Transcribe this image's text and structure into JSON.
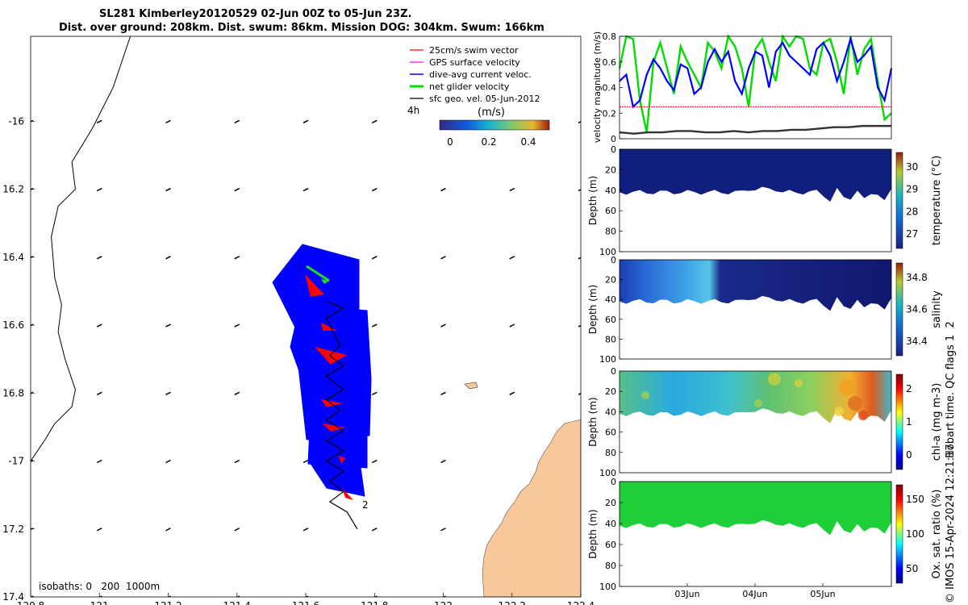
{
  "title": {
    "line1": "SL281 Kimberley20120529 02-Jun 00Z to 05-Jun 23Z.",
    "line2": "Dist. over ground: 208km. Dist. swum: 86km. Mission DOG: 304km. Swum: 166km"
  },
  "colors": {
    "swim_vector": "#ff0000",
    "gps_surface": "#ff00ff",
    "dive_avg": "#0000ff",
    "net_velocity": "#00dd00",
    "sfc_geo": "#000000",
    "land": "#f9c89a",
    "track_fill": "#0000ff",
    "track_line": "#000000"
  },
  "chart_data": [
    {
      "type": "map",
      "xlim": [
        120.8,
        122.4
      ],
      "ylim": [
        -17.4,
        -15.75
      ],
      "x_ticks": [
        120.8,
        121,
        121.2,
        121.4,
        121.6,
        121.8,
        122,
        122.2,
        122.4
      ],
      "x_tick_labels": [
        "120.8",
        "121",
        "121.2",
        "121.4",
        "121.6",
        "121.8",
        "122",
        "122.2",
        "122.4"
      ],
      "y_ticks": [
        -16,
        -16.2,
        -16.4,
        -16.6,
        -16.8,
        -17,
        -17.2,
        -17.4
      ],
      "y_tick_labels": [
        "-16",
        "16.2",
        "16.4",
        "16.6",
        "16.8",
        "-17",
        "17.2",
        "17.4"
      ],
      "legend": [
        {
          "label": "25cm/s swim vector",
          "color": "#ff0000"
        },
        {
          "label": "GPS surface velocity",
          "color": "#ff00ff"
        },
        {
          "label": "dive-avg current veloc.",
          "color": "#0000ff"
        },
        {
          "label": "net glider velocity",
          "color": "#00dd00"
        },
        {
          "label": "sfc geo. vel. 05-Jun-2012",
          "color": "#000000"
        }
      ],
      "legend_placement": "top-right",
      "colorbar": {
        "label": "(m/s)",
        "ticks": [
          "0",
          "0.2",
          "0.4"
        ],
        "range": [
          0,
          0.5
        ]
      },
      "annotations": {
        "time_marker": "4h",
        "day_marker": "2",
        "isobaths": "isobaths: 0   200  1000m"
      },
      "glider_track": [
        [
          121.66,
          -16.53
        ],
        [
          121.71,
          -16.55
        ],
        [
          121.66,
          -16.58
        ],
        [
          121.68,
          -16.62
        ],
        [
          121.7,
          -16.66
        ],
        [
          121.67,
          -16.69
        ],
        [
          121.71,
          -16.72
        ],
        [
          121.66,
          -16.75
        ],
        [
          121.71,
          -16.79
        ],
        [
          121.66,
          -16.82
        ],
        [
          121.7,
          -16.85
        ],
        [
          121.66,
          -16.88
        ],
        [
          121.71,
          -16.91
        ],
        [
          121.66,
          -16.94
        ],
        [
          121.71,
          -16.97
        ],
        [
          121.66,
          -17.0
        ],
        [
          121.71,
          -17.03
        ],
        [
          121.67,
          -17.06
        ],
        [
          121.71,
          -17.09
        ],
        [
          121.67,
          -17.12
        ],
        [
          121.72,
          -17.15
        ],
        [
          121.75,
          -17.2
        ]
      ],
      "coast_line": [
        [
          121.09,
          -15.75
        ],
        [
          121.04,
          -15.9
        ],
        [
          120.98,
          -16.02
        ],
        [
          120.92,
          -16.12
        ],
        [
          120.93,
          -16.2
        ],
        [
          120.88,
          -16.25
        ],
        [
          120.86,
          -16.34
        ],
        [
          120.87,
          -16.46
        ],
        [
          120.89,
          -16.54
        ],
        [
          120.88,
          -16.62
        ],
        [
          120.9,
          -16.7
        ],
        [
          120.93,
          -16.79
        ],
        [
          120.92,
          -16.84
        ],
        [
          120.87,
          -16.89
        ],
        [
          120.84,
          -16.94
        ],
        [
          120.8,
          -17.0
        ]
      ]
    },
    {
      "type": "line",
      "ylabel": "velocity magnitude (m/s)",
      "ylim": [
        0,
        0.8
      ],
      "y_ticks": [
        "0",
        "0.2",
        "0.4",
        "0.6",
        "0.8"
      ],
      "series": [
        {
          "color": "#00dd00",
          "values": [
            0.55,
            0.8,
            0.78,
            0.3,
            0.05,
            0.6,
            0.75,
            0.55,
            0.35,
            0.72,
            0.6,
            0.5,
            0.4,
            0.75,
            0.68,
            0.55,
            0.8,
            0.72,
            0.55,
            0.25,
            0.7,
            0.78,
            0.6,
            0.45,
            0.8,
            0.72,
            0.8,
            0.78,
            0.55,
            0.5,
            0.75,
            0.78,
            0.6,
            0.35,
            0.8,
            0.5,
            0.7,
            0.78,
            0.45,
            0.15,
            0.2
          ]
        },
        {
          "color": "#0000ff",
          "values": [
            0.45,
            0.5,
            0.25,
            0.3,
            0.5,
            0.62,
            0.55,
            0.45,
            0.38,
            0.58,
            0.55,
            0.35,
            0.4,
            0.6,
            0.7,
            0.6,
            0.68,
            0.45,
            0.35,
            0.55,
            0.68,
            0.65,
            0.4,
            0.68,
            0.75,
            0.65,
            0.6,
            0.55,
            0.5,
            0.7,
            0.75,
            0.65,
            0.45,
            0.6,
            0.78,
            0.6,
            0.65,
            0.72,
            0.4,
            0.3,
            0.55
          ]
        },
        {
          "color": "#ff0000",
          "values": [
            0.25,
            0.25
          ]
        },
        {
          "color": "#333333",
          "values": [
            0.05,
            0.04,
            0.05,
            0.05,
            0.06,
            0.06,
            0.05,
            0.05,
            0.06,
            0.05,
            0.06,
            0.06,
            0.07,
            0.07,
            0.08,
            0.09,
            0.09,
            0.1,
            0.1,
            0.1
          ]
        }
      ]
    },
    {
      "type": "heatmap",
      "ylabel": "Depth (m)",
      "yticks": [
        "0",
        "20",
        "40",
        "60",
        "80",
        "100"
      ],
      "cbar_label": "temperature (°C)",
      "cbar_ticks": [
        "30",
        "29",
        "28",
        "27"
      ],
      "colormap": "parula"
    },
    {
      "type": "heatmap",
      "ylabel": "Depth (m)",
      "yticks": [
        "0",
        "20",
        "40",
        "60",
        "80",
        "100"
      ],
      "cbar_label": "salinity",
      "cbar_ticks": [
        "34.8",
        "34.6",
        "34.4"
      ],
      "colormap": "parula"
    },
    {
      "type": "heatmap",
      "ylabel": "Depth (m)",
      "yticks": [
        "0",
        "20",
        "40",
        "60",
        "80",
        "100"
      ],
      "cbar_label": "chl-a (mg m-3)",
      "cbar_ticks": [
        "2",
        "1",
        "0"
      ],
      "colormap": "jet"
    },
    {
      "type": "heatmap",
      "ylabel": "Depth (m)",
      "yticks": [
        "0",
        "20",
        "40",
        "60",
        "80",
        "100"
      ],
      "cbar_label": "Ox. sat. ratio (%)",
      "cbar_ticks": [
        "150",
        "100",
        "50"
      ],
      "colormap": "jet",
      "x_tick_labels": [
        "03Jun",
        "04Jun",
        "05Jun"
      ]
    }
  ],
  "side_text": {
    "qc_label": "Hobart time. QC flags 1  2",
    "credit": "© IMOS 15-Apr-2024 12:21:17"
  }
}
